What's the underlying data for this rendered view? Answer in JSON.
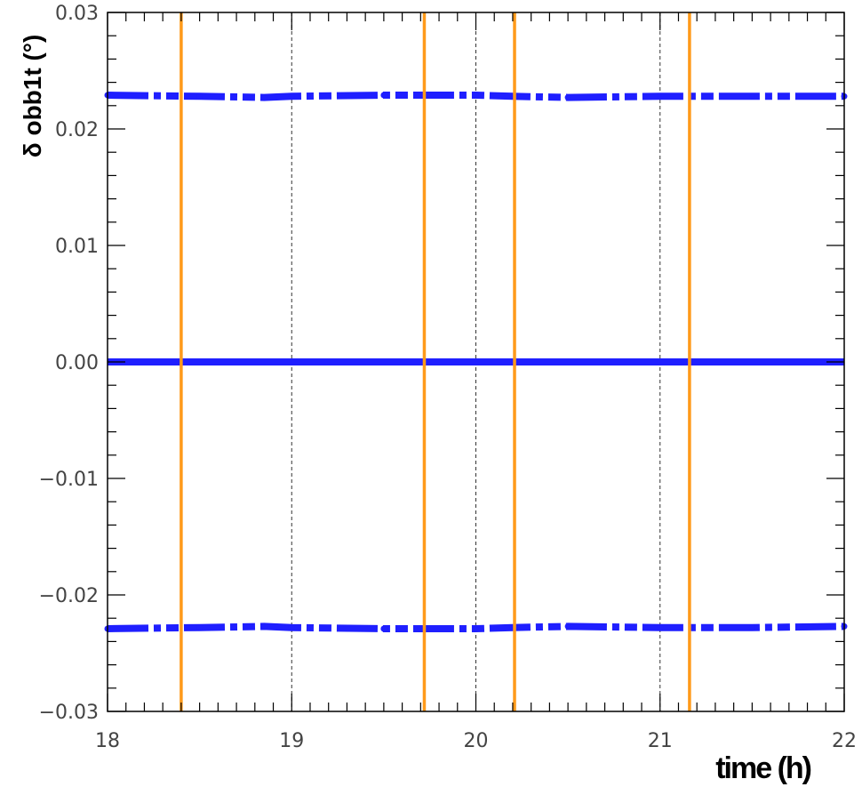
{
  "chart_data": {
    "type": "line",
    "title": "",
    "xlabel": "time (h)",
    "ylabel": "δ obb1t (°)",
    "xlim": [
      18,
      22
    ],
    "ylim": [
      -0.03,
      0.03
    ],
    "x_ticks": [
      18,
      19,
      20,
      21,
      22
    ],
    "x_tick_labels": [
      "18",
      "19",
      "20",
      "21",
      "22"
    ],
    "y_ticks": [
      -0.03,
      -0.02,
      -0.01,
      0.0,
      0.01,
      0.02,
      0.03
    ],
    "y_tick_labels": [
      "−0.03",
      "−0.02",
      "−0.01",
      "0.00",
      "0.01",
      "0.02",
      "0.03"
    ],
    "grid": false,
    "legend": "none",
    "colors": {
      "series": "#1f1fff",
      "events": "#ff9a1a",
      "dashed": "#333333",
      "axis": "#000000"
    },
    "series": [
      {
        "style": "dash-dot-markers",
        "x": [
          18.0,
          18.5,
          18.85,
          19.0,
          19.5,
          20.0,
          20.2,
          20.5,
          21.0,
          21.5,
          22.0
        ],
        "y": [
          0.0229,
          0.0228,
          0.0227,
          0.0228,
          0.0229,
          0.0229,
          0.0228,
          0.0227,
          0.0228,
          0.0228,
          0.0228
        ]
      },
      {
        "style": "solid-thick",
        "x": [
          18.0,
          22.0
        ],
        "y": [
          0.0,
          0.0
        ]
      },
      {
        "style": "dash-dot-markers",
        "x": [
          18.0,
          18.5,
          18.85,
          19.0,
          19.5,
          20.0,
          20.2,
          20.5,
          21.0,
          21.5,
          22.0
        ],
        "y": [
          -0.0229,
          -0.0228,
          -0.0227,
          -0.0228,
          -0.0229,
          -0.0229,
          -0.0228,
          -0.0227,
          -0.0228,
          -0.0228,
          -0.0227
        ]
      }
    ],
    "event_lines_x": [
      18.4,
      19.72,
      20.21,
      21.16
    ],
    "dashed_lines_x": [
      19.0,
      20.0,
      21.0
    ]
  }
}
